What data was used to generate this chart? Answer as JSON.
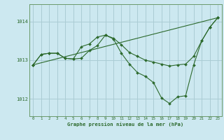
{
  "title": "Graphe pression niveau de la mer (hPa)",
  "background_color": "#cce8f0",
  "grid_color": "#aaccd4",
  "line_color": "#2d6a2d",
  "marker_color": "#2d6a2d",
  "xlim": [
    -0.5,
    23.5
  ],
  "ylim": [
    1011.55,
    1014.45
  ],
  "yticks": [
    1012,
    1013,
    1014
  ],
  "xticks": [
    0,
    1,
    2,
    3,
    4,
    5,
    6,
    7,
    8,
    9,
    10,
    11,
    12,
    13,
    14,
    15,
    16,
    17,
    18,
    19,
    20,
    21,
    22,
    23
  ],
  "series": [
    {
      "x": [
        0,
        1,
        2,
        3,
        4,
        5,
        6,
        7,
        8,
        9,
        10,
        11,
        12,
        13,
        14,
        15,
        16,
        17,
        18,
        19,
        20,
        21,
        22,
        23
      ],
      "y": [
        1012.88,
        1013.15,
        1013.18,
        1013.18,
        1013.05,
        1013.03,
        1013.35,
        1013.42,
        1013.6,
        1013.65,
        1013.57,
        1013.4,
        1013.2,
        1013.1,
        1013.0,
        1012.95,
        1012.9,
        1012.85,
        1012.88,
        1012.9,
        1013.1,
        1013.5,
        1013.85,
        1014.1
      ]
    },
    {
      "x": [
        0,
        1,
        2,
        3,
        4,
        5,
        6,
        7,
        8,
        9,
        10,
        11,
        12,
        13,
        14,
        15,
        16,
        17,
        18,
        19,
        20,
        21,
        22,
        23
      ],
      "y": [
        1012.88,
        1013.15,
        1013.18,
        1013.18,
        1013.05,
        1013.03,
        1013.05,
        1013.25,
        1013.38,
        1013.65,
        1013.55,
        1013.18,
        1012.9,
        1012.68,
        1012.58,
        1012.42,
        1012.02,
        1011.88,
        1012.05,
        1012.08,
        1012.88,
        1013.5,
        1013.85,
        1014.1
      ]
    },
    {
      "x": [
        0,
        23
      ],
      "y": [
        1012.88,
        1014.1
      ]
    }
  ]
}
